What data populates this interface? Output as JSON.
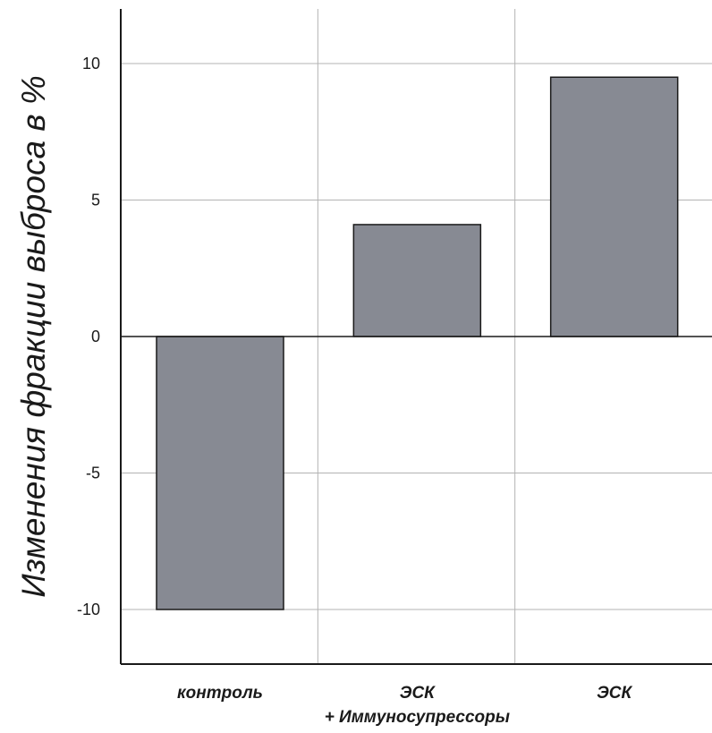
{
  "chart_data": {
    "type": "bar",
    "title": "",
    "xlabel": "",
    "ylabel": "Изменения фракции выброса в %",
    "categories": [
      [
        "контроль"
      ],
      [
        "ЭСК",
        "+ Иммуносупрессоры"
      ],
      [
        "ЭСК"
      ]
    ],
    "values": [
      -10,
      4.1,
      9.5
    ],
    "ylim": [
      -12,
      12
    ],
    "yticks": [
      10,
      5,
      0,
      -5,
      -10
    ],
    "ytick_labels": [
      "10",
      "5",
      "0",
      "-5",
      "-10"
    ],
    "grid": true,
    "bar_color": "#878a93"
  }
}
